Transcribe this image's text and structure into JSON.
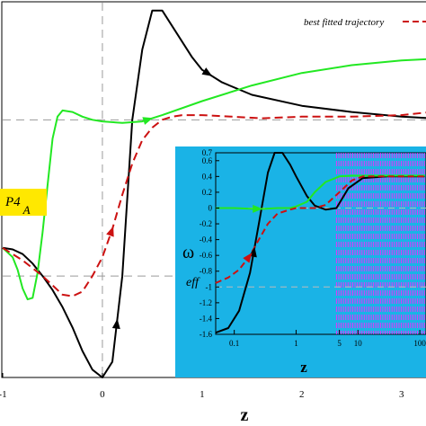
{
  "main_chart": {
    "xlabel": "z",
    "x_ticks": [
      "-1",
      "0",
      "1",
      "2",
      "3"
    ],
    "legend_label": "best fitted trajectory",
    "tag": {
      "text": "P4",
      "sub": "A",
      "fill": "#ffe800"
    },
    "colors": {
      "black": "#000000",
      "green": "#22e822",
      "red": "#cc1111",
      "guide": "#9a9a9a"
    }
  },
  "inset": {
    "background": "#1ab3e6",
    "ylabel": "ω",
    "ylabel_sub": "eff",
    "xlabel": "z",
    "y_ticks": [
      "0.7",
      "0.6",
      "0.4",
      "0.2",
      "0",
      "-0.2",
      "-0.4",
      "-0.6",
      "-0.8",
      "-1",
      "-1.2",
      "-1.4",
      "-1.6"
    ],
    "x_ticks": [
      "0.1",
      "1",
      "5",
      "10",
      "100"
    ],
    "ylim": [
      -1.6,
      0.7
    ],
    "xlim_log10": [
      -1.3,
      2.1
    ],
    "band_color": "#ff22ff"
  },
  "chart_data": [
    {
      "type": "line",
      "title": "",
      "xlabel": "z",
      "ylabel": "",
      "x_ticks": [
        -1,
        0,
        1,
        2,
        3
      ],
      "xlim": [
        -1,
        3.3
      ],
      "ylim": [
        -1.65,
        0.75
      ],
      "legend": {
        "position": "top-right",
        "entries": [
          "best fitted trajectory"
        ]
      },
      "reference_lines": {
        "horizontal": [
          -1,
          0
        ],
        "vertical": [
          0
        ]
      },
      "series": [
        {
          "color": "#000000",
          "style": "solid",
          "x": [
            -1.0,
            -0.9,
            -0.8,
            -0.7,
            -0.6,
            -0.5,
            -0.4,
            -0.3,
            -0.2,
            -0.1,
            0.0,
            0.1,
            0.2,
            0.3,
            0.4,
            0.5,
            0.6,
            0.7,
            0.8,
            0.9,
            1.0,
            1.2,
            1.5,
            2.0,
            2.5,
            3.0,
            3.3
          ],
          "y": [
            -0.82,
            -0.83,
            -0.86,
            -0.92,
            -1.0,
            -1.09,
            -1.2,
            -1.33,
            -1.48,
            -1.6,
            -1.65,
            -1.55,
            -1.0,
            0.0,
            0.45,
            0.7,
            0.7,
            0.6,
            0.5,
            0.4,
            0.32,
            0.24,
            0.16,
            0.09,
            0.05,
            0.02,
            0.01
          ]
        },
        {
          "color": "#22e822",
          "style": "solid",
          "x": [
            -1.0,
            -0.9,
            -0.85,
            -0.8,
            -0.75,
            -0.7,
            -0.65,
            -0.6,
            -0.55,
            -0.5,
            -0.45,
            -0.4,
            -0.3,
            -0.2,
            -0.1,
            0.0,
            0.2,
            0.4,
            0.6,
            1.0,
            1.5,
            2.0,
            2.5,
            3.0,
            3.3
          ],
          "y": [
            -0.82,
            -0.88,
            -0.96,
            -1.08,
            -1.15,
            -1.14,
            -0.98,
            -0.72,
            -0.42,
            -0.12,
            0.02,
            0.06,
            0.05,
            0.02,
            0.0,
            -0.01,
            -0.02,
            -0.01,
            0.03,
            0.12,
            0.22,
            0.3,
            0.35,
            0.38,
            0.39
          ]
        },
        {
          "name": "best fitted trajectory",
          "color": "#cc1111",
          "style": "dashed",
          "x": [
            -1.0,
            -0.8,
            -0.6,
            -0.4,
            -0.3,
            -0.2,
            -0.1,
            0.0,
            0.1,
            0.2,
            0.3,
            0.4,
            0.5,
            0.6,
            0.7,
            0.8,
            1.0,
            1.3,
            1.6,
            2.0,
            2.5,
            3.0,
            3.3
          ],
          "y": [
            -0.82,
            -0.9,
            -1.0,
            -1.12,
            -1.13,
            -1.1,
            -1.0,
            -0.88,
            -0.7,
            -0.48,
            -0.28,
            -0.13,
            -0.05,
            0.0,
            0.02,
            0.03,
            0.03,
            0.02,
            0.01,
            0.02,
            0.02,
            0.03,
            0.05
          ]
        }
      ]
    },
    {
      "type": "line",
      "title": "",
      "xlabel": "z",
      "ylabel": "ω eff",
      "x_scale": "log",
      "x_ticks": [
        0.1,
        1,
        5,
        10,
        100
      ],
      "y_ticks": [
        0.7,
        0.6,
        0.4,
        0.2,
        0,
        -0.2,
        -0.4,
        -0.6,
        -0.8,
        -1,
        -1.2,
        -1.4,
        -1.6
      ],
      "ylim": [
        -1.6,
        0.7
      ],
      "series": [
        {
          "color": "#000000",
          "style": "solid",
          "x": [
            0.05,
            0.08,
            0.12,
            0.18,
            0.25,
            0.35,
            0.45,
            0.6,
            0.8,
            1.0,
            1.5,
            2.0,
            3.0,
            4.5,
            7.0,
            12.0,
            30.0,
            100.0,
            120.0
          ],
          "y": [
            -1.58,
            -1.52,
            -1.3,
            -0.82,
            -0.2,
            0.45,
            0.7,
            0.7,
            0.55,
            0.4,
            0.15,
            0.03,
            -0.02,
            0.0,
            0.25,
            0.38,
            0.4,
            0.4,
            0.4
          ]
        },
        {
          "color": "#22e822",
          "style": "solid",
          "x": [
            0.05,
            0.1,
            0.2,
            0.3,
            0.5,
            0.8,
            1.0,
            1.5,
            2.0,
            3.0,
            5.0,
            8.0,
            12.0,
            30.0,
            100.0,
            120.0
          ],
          "y": [
            0.0,
            0.0,
            -0.01,
            -0.01,
            0.0,
            0.0,
            0.02,
            0.08,
            0.2,
            0.33,
            0.4,
            0.41,
            0.41,
            0.41,
            0.41,
            0.41
          ]
        },
        {
          "color": "#cc1111",
          "style": "dashed",
          "x": [
            0.05,
            0.08,
            0.12,
            0.18,
            0.25,
            0.35,
            0.5,
            0.8,
            1.0,
            1.5,
            2.0,
            3.0,
            5.0,
            8.0,
            12.0,
            30.0,
            100.0,
            120.0
          ],
          "y": [
            -0.95,
            -0.88,
            -0.78,
            -0.6,
            -0.4,
            -0.2,
            -0.07,
            -0.02,
            0.0,
            0.0,
            0.0,
            0.04,
            0.2,
            0.35,
            0.4,
            0.4,
            0.4,
            0.4
          ]
        }
      ]
    }
  ]
}
